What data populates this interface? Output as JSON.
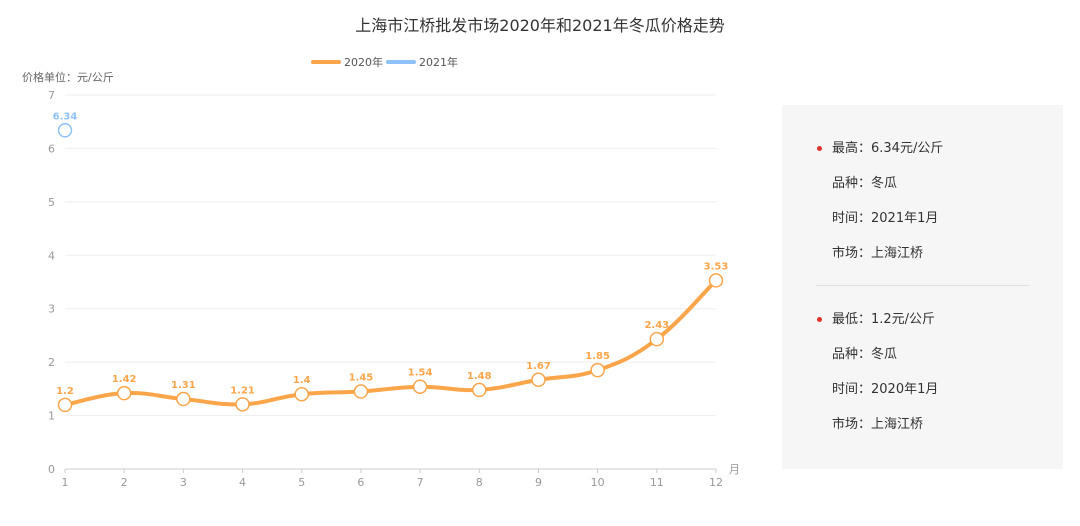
{
  "chart_data": {
    "type": "line",
    "title": "上海市江桥批发市场2020年和2021年冬瓜价格走势",
    "ylabel": "价格单位：元/公斤",
    "xlabel": "月",
    "categories": [
      "1",
      "2",
      "3",
      "4",
      "5",
      "6",
      "7",
      "8",
      "9",
      "10",
      "11",
      "12"
    ],
    "ylim": [
      0,
      7
    ],
    "yticks": [
      0,
      1,
      2,
      3,
      4,
      5,
      6,
      7
    ],
    "grid": true,
    "legend_position": "top-center",
    "series": [
      {
        "name": "2020年",
        "color": "#fba54b",
        "values": [
          1.2,
          1.42,
          1.31,
          1.21,
          1.4,
          1.45,
          1.54,
          1.48,
          1.67,
          1.85,
          2.43,
          3.53
        ],
        "labels": [
          "1.2",
          "1.42",
          "1.31",
          "1.21",
          "1.4",
          "1.45",
          "1.54",
          "1.48",
          "1.67",
          "1.85",
          "2.43",
          "3.53"
        ]
      },
      {
        "name": "2021年",
        "color": "#8dc1f7",
        "values": [
          6.34,
          null,
          null,
          null,
          null,
          null,
          null,
          null,
          null,
          null,
          null,
          null
        ],
        "labels": [
          "6.34"
        ]
      }
    ]
  },
  "summary": {
    "dot_color": "#e0322a",
    "high": {
      "price": "最高：6.34元/公斤",
      "variety": "品种：冬瓜",
      "time": "时间：2021年1月",
      "market": "市场：上海江桥"
    },
    "low": {
      "price": "最低：1.2元/公斤",
      "variety": "品种：冬瓜",
      "time": "时间：2020年1月",
      "market": "市场：上海江桥"
    }
  }
}
